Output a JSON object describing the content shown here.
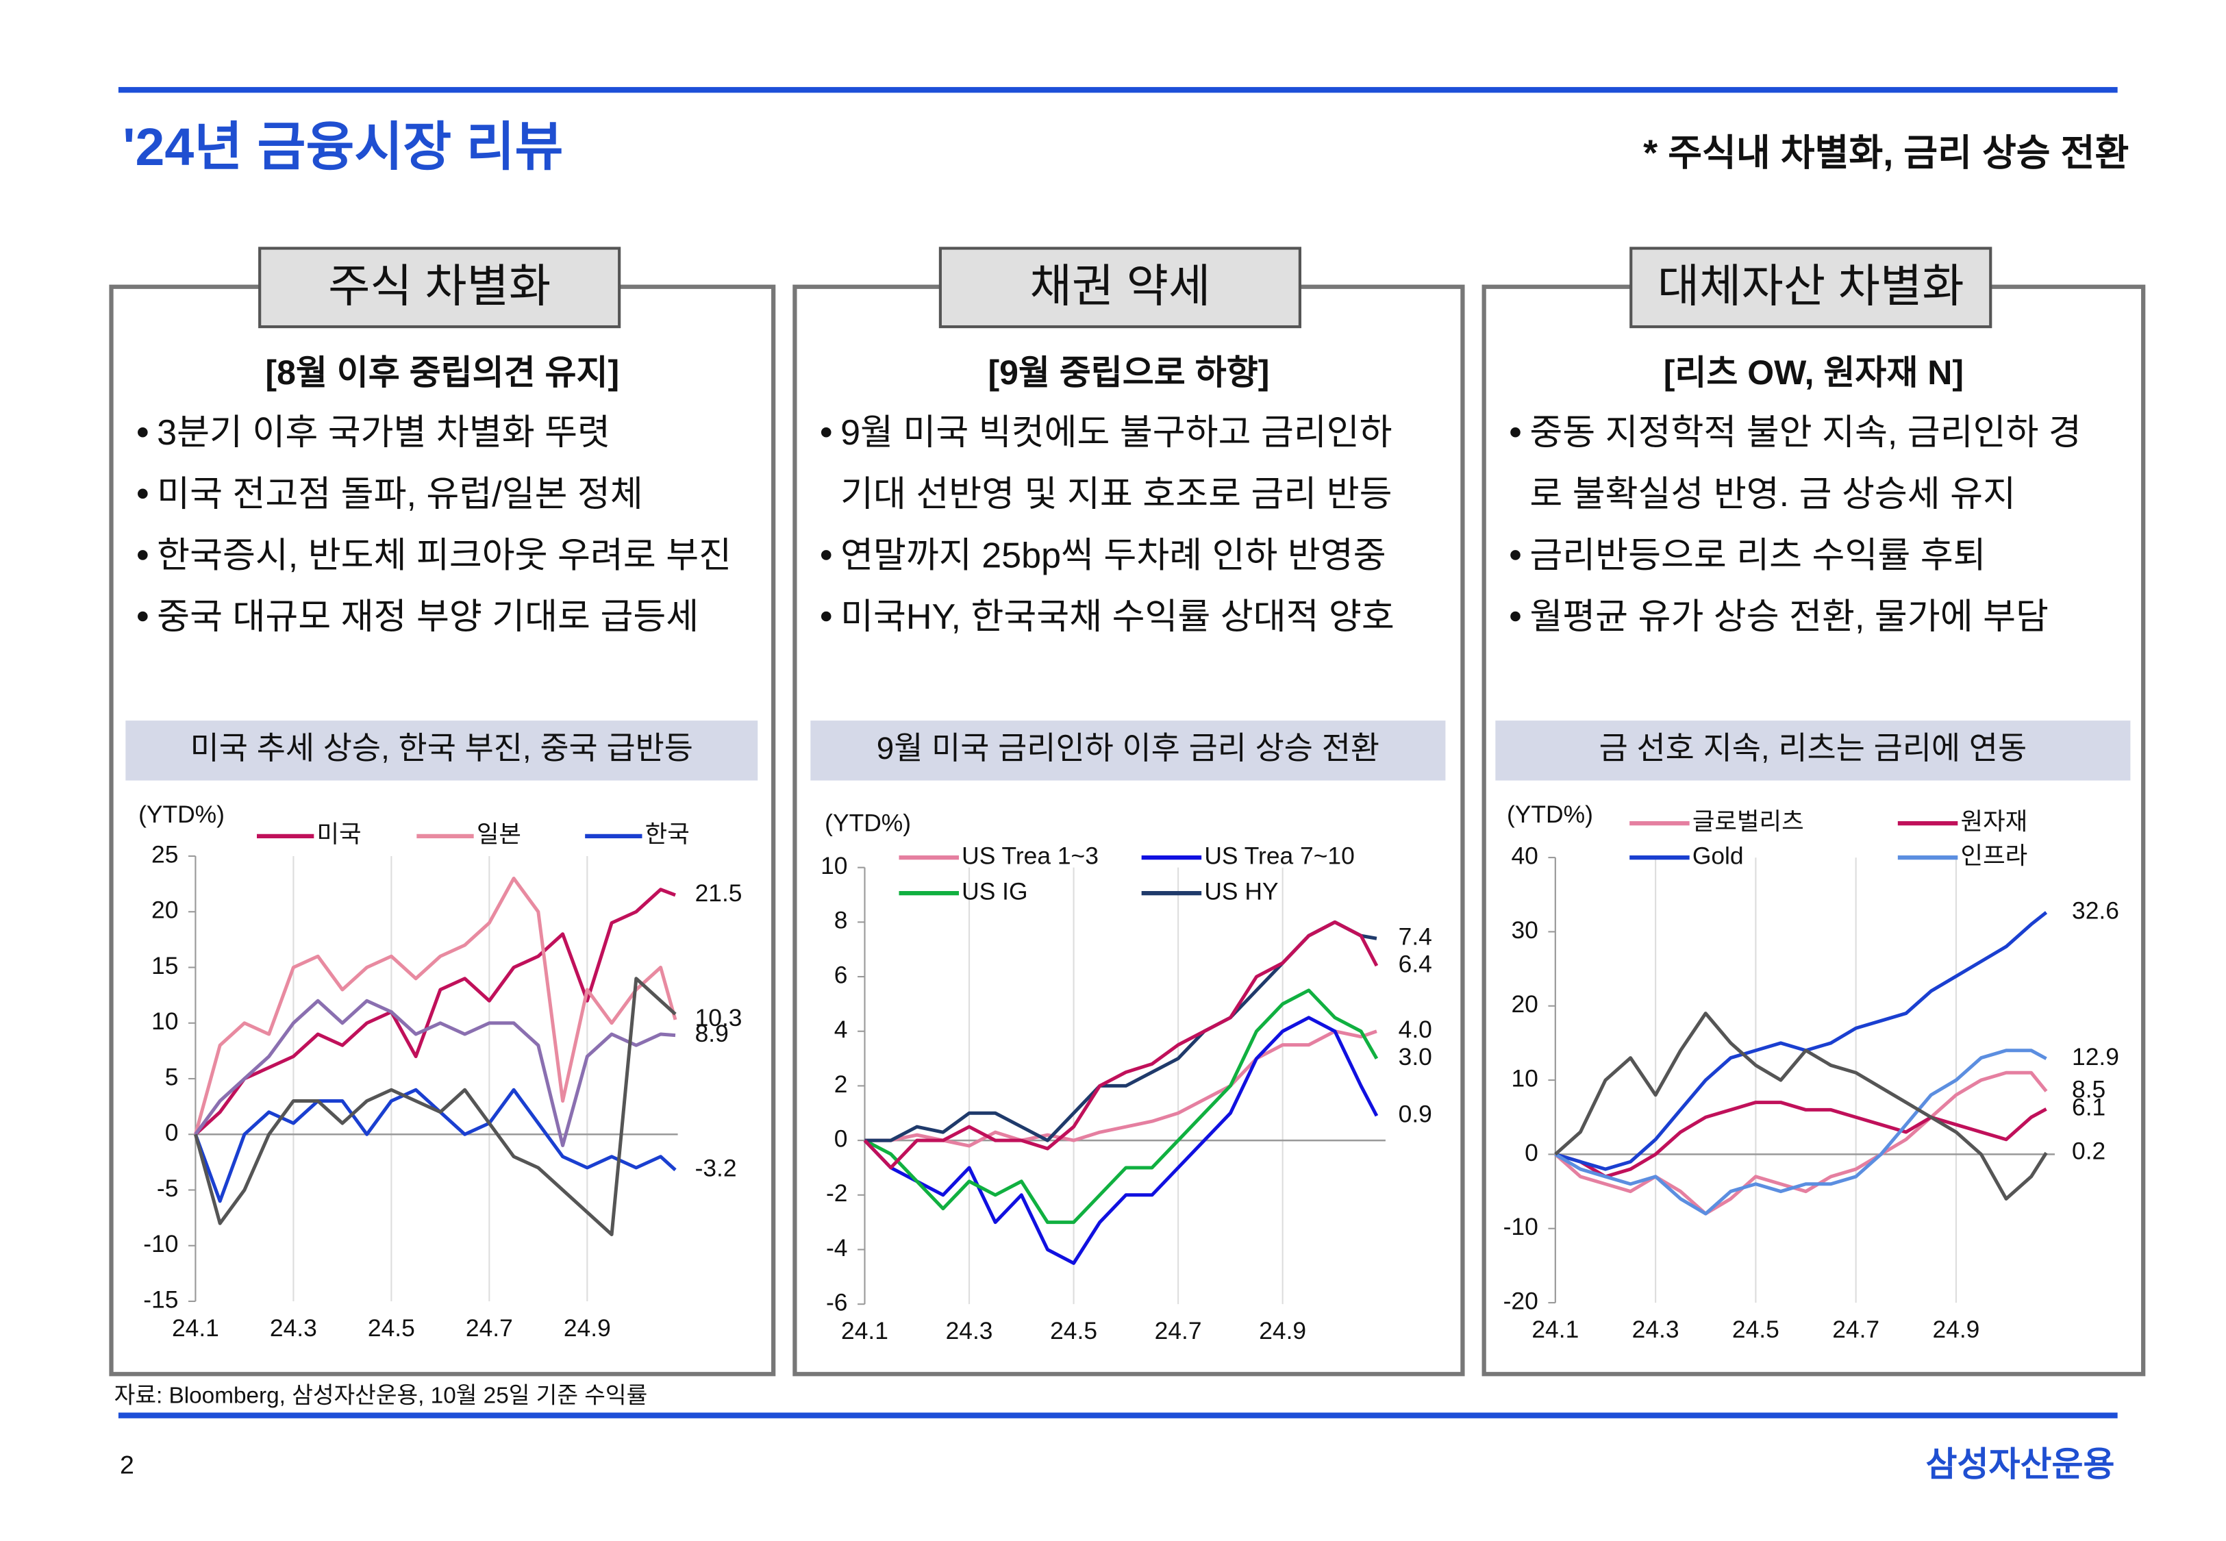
{
  "header": {
    "title": "'24년 금융시장 리뷰",
    "note": "* 주식내 차별화, 금리 상승 전환"
  },
  "panels": [
    {
      "heading": "주식 차별화",
      "subheading": "[8월 이후 중립의견 유지]",
      "bullets": [
        [
          "3분기 이후 국가별 차별화 뚜렷"
        ],
        [
          "미국 전고점 돌파, 유럽/일본 정체"
        ],
        [
          "한국증시, 반도체 피크아웃 우려로 부진"
        ],
        [
          "중국 대규모 재정 부양 기대로 급등세"
        ]
      ],
      "caption": "미국 추세 상승, 한국 부진, 중국 급반등"
    },
    {
      "heading": "채권 약세",
      "subheading": "[9월 중립으로 하향]",
      "bullets": [
        [
          "9월 미국 빅컷에도 불구하고 금리인하",
          "기대 선반영 및 지표 호조로 금리 반등"
        ],
        [
          "연말까지 25bp씩 두차례 인하 반영중"
        ],
        [
          "미국HY, 한국국채 수익률 상대적 양호"
        ]
      ],
      "caption": "9월 미국 금리인하 이후 금리 상승 전환"
    },
    {
      "heading": "대체자산 차별화",
      "subheading": "[리츠 OW, 원자재 N]",
      "bullets": [
        [
          "중동 지정학적 불안 지속, 금리인하 경",
          "로 불확실성 반영. 금 상승세 유지"
        ],
        [
          "금리반등으로 리츠 수익률 후퇴"
        ],
        [
          "월평균 유가 상승 전환, 물가에 부담"
        ]
      ],
      "caption": "금 선호 지속, 리츠는 금리에 연동"
    }
  ],
  "chart_data": [
    {
      "type": "line",
      "ylabel": "(YTD%)",
      "grid": "x",
      "x": [
        1,
        1.5,
        2,
        2.5,
        3,
        3.5,
        4,
        4.5,
        5,
        5.5,
        6,
        6.5,
        7,
        7.5,
        8,
        8.5,
        9,
        9.5,
        10,
        10.5,
        10.8
      ],
      "xlim": [
        1,
        10.85
      ],
      "xticks": [
        {
          "value": 1,
          "label": "24.1"
        },
        {
          "value": 3,
          "label": "24.3"
        },
        {
          "value": 5,
          "label": "24.5"
        },
        {
          "value": 7,
          "label": "24.7"
        },
        {
          "value": 9,
          "label": "24.9"
        }
      ],
      "ylim": [
        -15,
        25
      ],
      "yticks": [
        -15,
        -10,
        -5,
        0,
        5,
        10,
        15,
        20,
        25
      ],
      "series": [
        {
          "name": "미국",
          "color": "#c0105a",
          "values": [
            0,
            2,
            5,
            6,
            7,
            9,
            8,
            10,
            11,
            7,
            13,
            14,
            12,
            15,
            16,
            18,
            12,
            19,
            20,
            22,
            21.5
          ],
          "end_label": "21.5"
        },
        {
          "name": "일본",
          "color": "#e88aa0",
          "values": [
            0,
            8,
            10,
            9,
            15,
            16,
            13,
            15,
            16,
            14,
            16,
            17,
            19,
            23,
            20,
            3,
            13,
            10,
            13,
            15,
            10.3
          ],
          "end_label": "10.3"
        },
        {
          "name": "한국",
          "color": "#1a3fd0",
          "values": [
            0,
            -6,
            0,
            2,
            1,
            3,
            3,
            0,
            3,
            4,
            2,
            0,
            1,
            4,
            1,
            -2,
            -3,
            -2,
            -3,
            -2,
            -3.2
          ],
          "end_label": "-3.2"
        },
        {
          "color": "#8a6fb0",
          "values": [
            0,
            3,
            5,
            7,
            10,
            12,
            10,
            12,
            11,
            9,
            10,
            9,
            10,
            10,
            8,
            -1,
            7,
            9,
            8,
            9,
            8.9
          ],
          "end_label": "8.9"
        },
        {
          "color": "#555555",
          "values": [
            0,
            -8,
            -5,
            0,
            3,
            3,
            1,
            3,
            4,
            3,
            2,
            4,
            1,
            -2,
            -3,
            -5,
            -7,
            -9,
            14,
            12,
            10.8
          ]
        }
      ]
    },
    {
      "type": "line",
      "ylabel": "(YTD%)",
      "grid": "x",
      "x": [
        1,
        1.5,
        2,
        2.5,
        3,
        3.5,
        4,
        4.5,
        5,
        5.5,
        6,
        6.5,
        7,
        7.5,
        8,
        8.5,
        9,
        9.5,
        10,
        10.5,
        10.8
      ],
      "xlim": [
        1,
        10.97
      ],
      "xticks": [
        {
          "value": 1,
          "label": "24.1"
        },
        {
          "value": 3,
          "label": "24.3"
        },
        {
          "value": 5,
          "label": "24.5"
        },
        {
          "value": 7,
          "label": "24.7"
        },
        {
          "value": 9,
          "label": "24.9"
        }
      ],
      "ylim": [
        -6,
        10
      ],
      "yticks": [
        -6,
        -4,
        -2,
        0,
        2,
        4,
        6,
        8,
        10
      ],
      "series": [
        {
          "name": "US Trea 1~3",
          "color": "#e57fa0",
          "values": [
            0,
            0,
            0.2,
            0,
            -0.2,
            0.3,
            0,
            0.2,
            0,
            0.3,
            0.5,
            0.7,
            1,
            1.5,
            2,
            3,
            3.5,
            3.5,
            4,
            3.8,
            4.0
          ],
          "end_label": "4.0"
        },
        {
          "name": "US Trea 7~10",
          "color": "#1010e0",
          "values": [
            0,
            -1,
            -1.5,
            -2,
            -1,
            -3,
            -2,
            -4,
            -4.5,
            -3,
            -2,
            -2,
            -1,
            0,
            1,
            3,
            4,
            4.5,
            4,
            2,
            0.9
          ],
          "end_label": "0.9"
        },
        {
          "name": "US IG",
          "color": "#10b040",
          "values": [
            0,
            -0.5,
            -1.5,
            -2.5,
            -1.5,
            -2,
            -1.5,
            -3,
            -3,
            -2,
            -1,
            -1,
            0,
            1,
            2,
            4,
            5,
            5.5,
            4.5,
            4,
            3.0
          ],
          "end_label": "3.0"
        },
        {
          "name": "US HY",
          "color": "#1f3a6b",
          "values": [
            0,
            0,
            0.5,
            0.3,
            1,
            1,
            0.5,
            0,
            1,
            2,
            2,
            2.5,
            3,
            4,
            4.5,
            5.5,
            6.5,
            7.5,
            8,
            7.5,
            7.4
          ],
          "end_label": "7.4"
        },
        {
          "color": "#c0105a",
          "values": [
            0,
            -1,
            0,
            0,
            0.5,
            0,
            0,
            -0.3,
            0.5,
            2,
            2.5,
            2.8,
            3.5,
            4,
            4.5,
            6,
            6.5,
            7.5,
            8,
            7.5,
            6.4
          ],
          "end_label": "6.4"
        }
      ]
    },
    {
      "type": "line",
      "ylabel": "(YTD%)",
      "grid": "x",
      "x": [
        1,
        1.5,
        2,
        2.5,
        3,
        3.5,
        4,
        4.5,
        5,
        5.5,
        6,
        6.5,
        7,
        7.5,
        8,
        8.5,
        9,
        9.5,
        10,
        10.5,
        10.8
      ],
      "xlim": [
        1,
        10.97
      ],
      "xticks": [
        {
          "value": 1,
          "label": "24.1"
        },
        {
          "value": 3,
          "label": "24.3"
        },
        {
          "value": 5,
          "label": "24.5"
        },
        {
          "value": 7,
          "label": "24.7"
        },
        {
          "value": 9,
          "label": "24.9"
        }
      ],
      "ylim": [
        -20,
        40
      ],
      "yticks": [
        -20,
        -10,
        0,
        10,
        20,
        30,
        40
      ],
      "series": [
        {
          "name": "글로벌리츠",
          "color": "#e57fa0",
          "values": [
            0,
            -3,
            -4,
            -5,
            -3,
            -5,
            -8,
            -6,
            -3,
            -4,
            -5,
            -3,
            -2,
            0,
            2,
            5,
            8,
            10,
            11,
            11,
            8.5
          ],
          "end_label": "8.5"
        },
        {
          "name": "원자재",
          "color": "#c0105a",
          "values": [
            0,
            -1,
            -3,
            -2,
            0,
            3,
            5,
            6,
            7,
            7,
            6,
            6,
            5,
            4,
            3,
            5,
            4,
            3,
            2,
            5,
            6.1
          ],
          "end_label": "6.1"
        },
        {
          "name": "Gold",
          "color": "#1a3fd0",
          "values": [
            0,
            -1,
            -2,
            -1,
            2,
            6,
            10,
            13,
            14,
            15,
            14,
            15,
            17,
            18,
            19,
            22,
            24,
            26,
            28,
            31,
            32.6
          ],
          "end_label": "32.6"
        },
        {
          "name": "인프라",
          "color": "#5b8ee0",
          "values": [
            0,
            -2,
            -3,
            -4,
            -3,
            -6,
            -8,
            -5,
            -4,
            -5,
            -4,
            -4,
            -3,
            0,
            4,
            8,
            10,
            13,
            14,
            14,
            12.9
          ],
          "end_label": "12.9"
        },
        {
          "color": "#555555",
          "values": [
            0,
            3,
            10,
            13,
            8,
            14,
            19,
            15,
            12,
            10,
            14,
            12,
            11,
            9,
            7,
            5,
            3,
            0,
            -6,
            -3,
            0.2
          ],
          "end_label": "0.2"
        }
      ]
    }
  ],
  "footer": {
    "source": "자료: Bloomberg, 삼성자산운용, 10월 25일 기준 수익률",
    "page": "2",
    "brand": "삼성자산운용"
  }
}
